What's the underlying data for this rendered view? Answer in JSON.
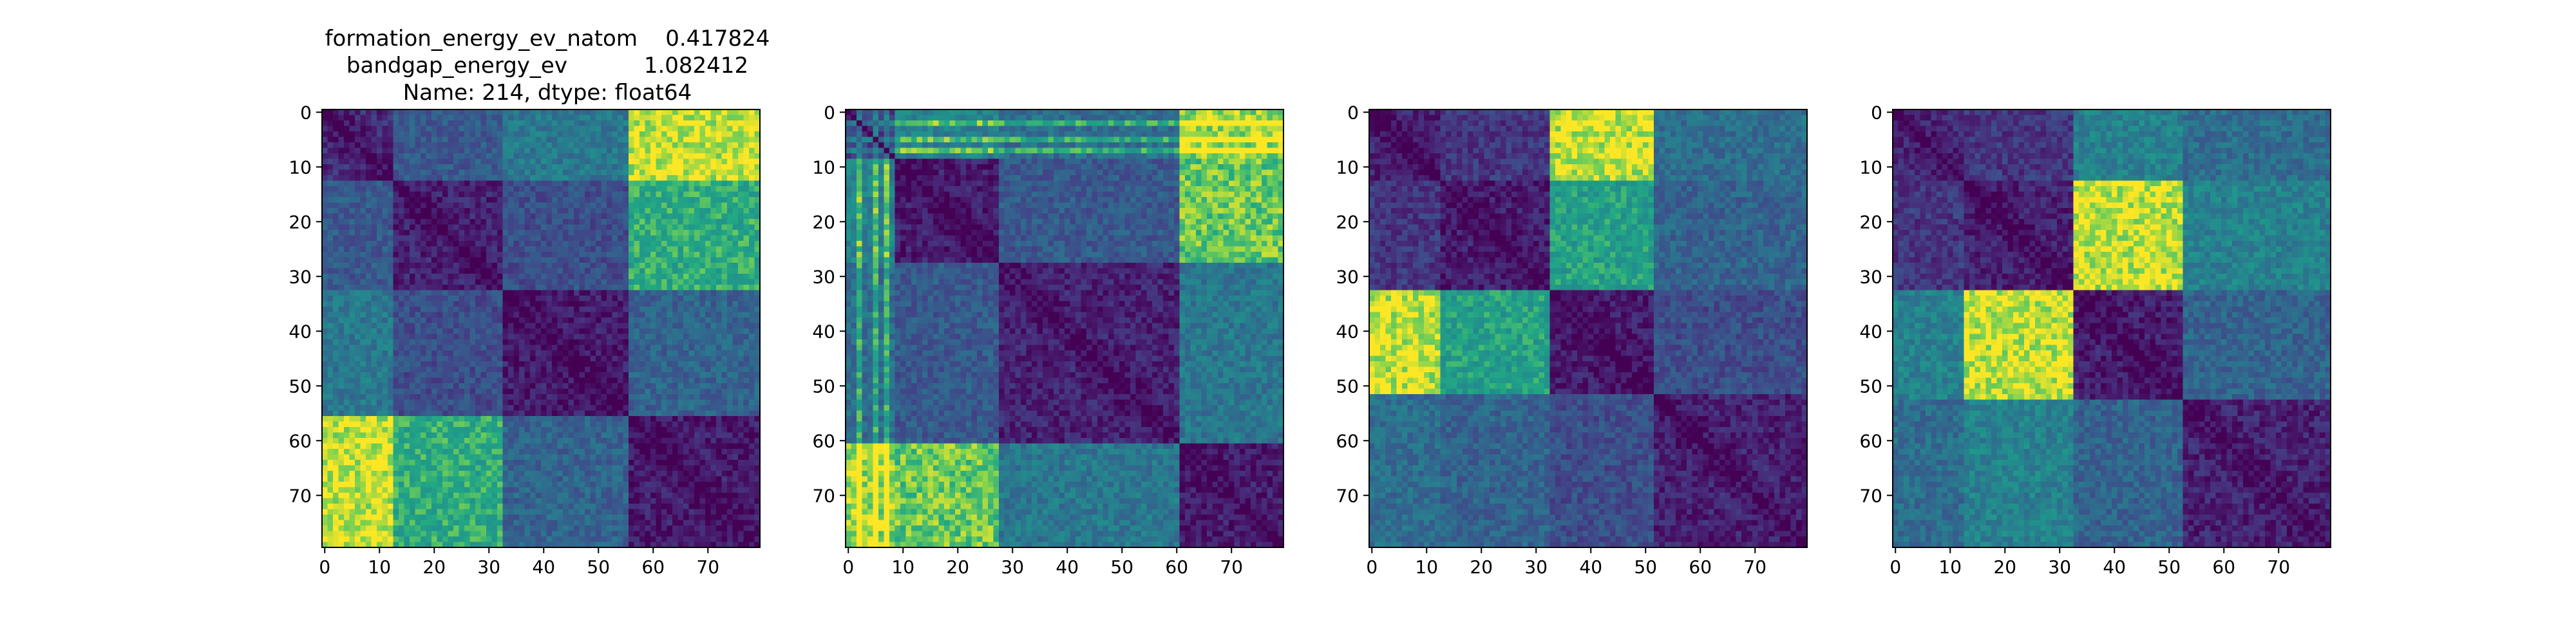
{
  "chart_data": {
    "type": "heatmap",
    "title_lines": [
      "formation_energy_ev_natom    0.417824",
      "bandgap_energy_ev           1.082412",
      "Name: 214, dtype: float64"
    ],
    "colormap": "viridis",
    "matrix_size": 80,
    "x_ticks": [
      0,
      10,
      20,
      30,
      40,
      50,
      60,
      70
    ],
    "y_ticks": [
      0,
      10,
      20,
      30,
      40,
      50,
      60,
      70
    ],
    "xlim": [
      0,
      79
    ],
    "ylim": [
      79,
      0
    ],
    "panels": [
      {
        "blocks": [
          [
            0,
            13
          ],
          [
            13,
            33
          ],
          [
            33,
            56
          ],
          [
            56,
            80
          ]
        ],
        "block_values": [
          [
            0.15,
            0.35,
            0.5,
            0.95
          ],
          [
            0.35,
            0.12,
            0.3,
            0.75
          ],
          [
            0.5,
            0.3,
            0.1,
            0.4
          ],
          [
            0.95,
            0.75,
            0.4,
            0.1
          ]
        ]
      },
      {
        "blocks": [
          [
            0,
            9
          ],
          [
            9,
            28
          ],
          [
            28,
            61
          ],
          [
            61,
            80
          ]
        ],
        "block_values": [
          [
            0.25,
            0.55,
            0.45,
            0.9
          ],
          [
            0.55,
            0.1,
            0.35,
            0.85
          ],
          [
            0.45,
            0.35,
            0.12,
            0.5
          ],
          [
            0.9,
            0.85,
            0.5,
            0.1
          ]
        ],
        "stripes": [
          2,
          5,
          7
        ]
      },
      {
        "blocks": [
          [
            0,
            13
          ],
          [
            13,
            33
          ],
          [
            33,
            52
          ],
          [
            52,
            80
          ]
        ],
        "block_values": [
          [
            0.12,
            0.2,
            0.95,
            0.45
          ],
          [
            0.2,
            0.1,
            0.7,
            0.4
          ],
          [
            0.95,
            0.7,
            0.1,
            0.3
          ],
          [
            0.45,
            0.4,
            0.3,
            0.12
          ]
        ]
      },
      {
        "blocks": [
          [
            0,
            13
          ],
          [
            13,
            33
          ],
          [
            33,
            53
          ],
          [
            53,
            80
          ]
        ],
        "block_values": [
          [
            0.15,
            0.2,
            0.55,
            0.45
          ],
          [
            0.2,
            0.12,
            0.95,
            0.55
          ],
          [
            0.55,
            0.95,
            0.1,
            0.4
          ],
          [
            0.45,
            0.55,
            0.4,
            0.12
          ]
        ]
      }
    ]
  }
}
